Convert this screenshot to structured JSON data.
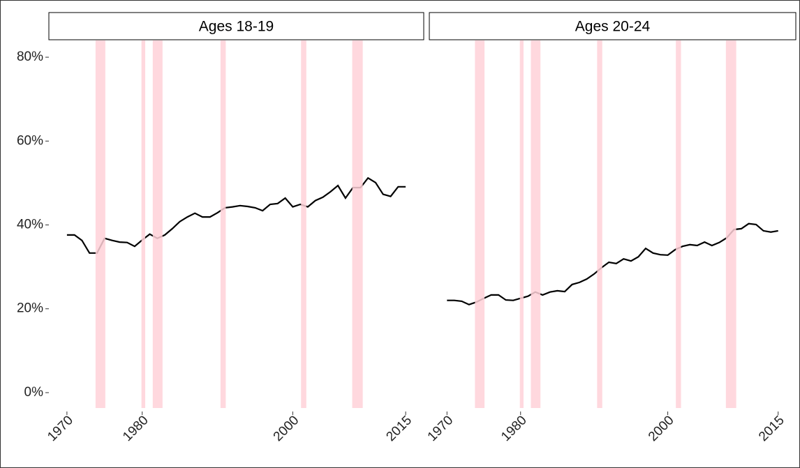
{
  "chart_data": [
    {
      "type": "line",
      "title": "Ages 18-19",
      "x": [
        1970,
        1971,
        1972,
        1973,
        1974,
        1975,
        1976,
        1977,
        1978,
        1979,
        1980,
        1981,
        1982,
        1983,
        1984,
        1985,
        1986,
        1987,
        1988,
        1989,
        1990,
        1991,
        1992,
        1993,
        1994,
        1995,
        1996,
        1997,
        1998,
        1999,
        2000,
        2001,
        2002,
        2003,
        2004,
        2005,
        2006,
        2007,
        2008,
        2009,
        2010,
        2011,
        2012,
        2013,
        2014,
        2015
      ],
      "values": [
        37.6,
        37.6,
        36.3,
        33.3,
        33.3,
        36.8,
        36.3,
        35.9,
        35.8,
        34.9,
        36.4,
        37.8,
        36.8,
        37.6,
        39.1,
        40.8,
        41.9,
        42.8,
        41.9,
        41.9,
        42.9,
        44.1,
        44.3,
        44.6,
        44.4,
        44.1,
        43.4,
        44.9,
        45.1,
        46.4,
        44.3,
        44.9,
        44.3,
        45.8,
        46.6,
        47.9,
        49.4,
        46.4,
        48.9,
        48.9,
        51.2,
        50.1,
        47.3,
        46.8,
        49.1,
        49.1
      ],
      "color": "#000000",
      "recessions": [
        [
          1973.8,
          1975.1
        ],
        [
          1979.9,
          1980.4
        ],
        [
          1981.4,
          1982.7
        ],
        [
          1990.4,
          1991.1
        ],
        [
          2001.1,
          2001.8
        ],
        [
          2007.9,
          2009.3
        ]
      ],
      "band_color": "#ffd1d8",
      "xlim": [
        1967.6,
        2017.4
      ],
      "xticks": [
        1970,
        1980,
        2000,
        2015
      ],
      "ylim": [
        -4.5,
        84
      ],
      "yticks": [
        {
          "value": 0,
          "label": "0%"
        },
        {
          "value": 20,
          "label": "20%"
        },
        {
          "value": 40,
          "label": "40%"
        },
        {
          "value": 60,
          "label": "60%"
        },
        {
          "value": 80,
          "label": "80%"
        }
      ]
    },
    {
      "type": "line",
      "title": "Ages 20-24",
      "x": [
        1970,
        1971,
        1972,
        1973,
        1974,
        1975,
        1976,
        1977,
        1978,
        1979,
        1980,
        1981,
        1982,
        1983,
        1984,
        1985,
        1986,
        1987,
        1988,
        1989,
        1990,
        1991,
        1992,
        1993,
        1994,
        1995,
        1996,
        1997,
        1998,
        1999,
        2000,
        2001,
        2002,
        2003,
        2004,
        2005,
        2006,
        2007,
        2008,
        2009,
        2010,
        2011,
        2012,
        2013,
        2014,
        2015
      ],
      "values": [
        22.0,
        22.0,
        21.8,
        21.0,
        21.6,
        22.5,
        23.3,
        23.3,
        22.1,
        22.0,
        22.5,
        23.0,
        24.0,
        23.3,
        24.0,
        24.3,
        24.1,
        25.8,
        26.3,
        27.1,
        28.3,
        29.8,
        31.1,
        30.8,
        31.9,
        31.4,
        32.4,
        34.4,
        33.3,
        32.9,
        32.8,
        34.1,
        34.9,
        35.3,
        35.1,
        35.9,
        35.1,
        35.8,
        36.9,
        38.9,
        39.1,
        40.3,
        40.1,
        38.6,
        38.3,
        38.6
      ],
      "color": "#000000",
      "recessions": [
        [
          1973.8,
          1975.1
        ],
        [
          1979.9,
          1980.4
        ],
        [
          1981.4,
          1982.7
        ],
        [
          1990.4,
          1991.1
        ],
        [
          2001.1,
          2001.8
        ],
        [
          2007.9,
          2009.3
        ]
      ],
      "band_color": "#ffd1d8",
      "xlim": [
        1967.6,
        2017.4
      ],
      "xticks": [
        1970,
        1980,
        2000,
        2015
      ],
      "ylim": [
        -4.5,
        84
      ]
    }
  ]
}
